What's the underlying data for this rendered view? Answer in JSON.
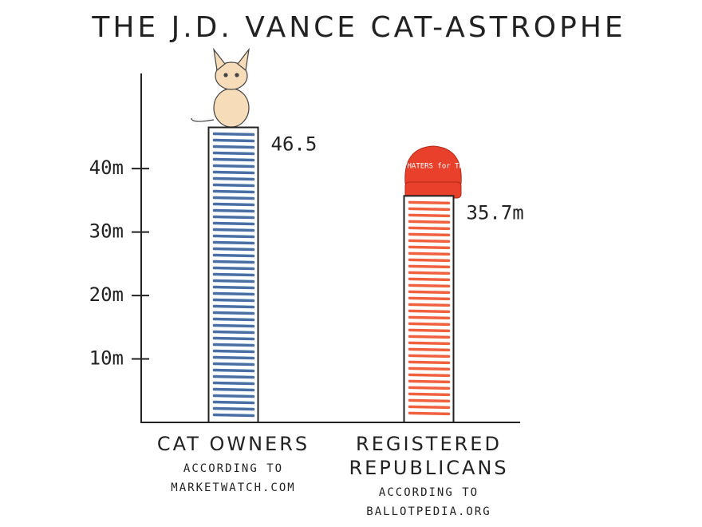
{
  "chart_data": {
    "type": "bar",
    "title": "THE J.D. VANCE CAT-ASTROPHE",
    "categories": [
      "CAT OWNERS",
      "REGISTERED REPUBLICANS"
    ],
    "category_notes": [
      "ACCORDING TO MARKETWATCH.COM",
      "ACCORDING TO BALLOTPEDIA.ORG"
    ],
    "values": [
      46.5,
      35.7
    ],
    "value_labels": [
      "46.5",
      "35.7m"
    ],
    "colors": [
      "#4a6fa5",
      "#f0623f"
    ],
    "annotation": "CAT HATERS for TRUMP",
    "ylim": [
      0,
      55
    ],
    "yticks": [
      {
        "value": 10,
        "label": "10m"
      },
      {
        "value": 20,
        "label": "20m"
      },
      {
        "value": 30,
        "label": "30m"
      },
      {
        "value": 40,
        "label": "40m"
      }
    ]
  }
}
